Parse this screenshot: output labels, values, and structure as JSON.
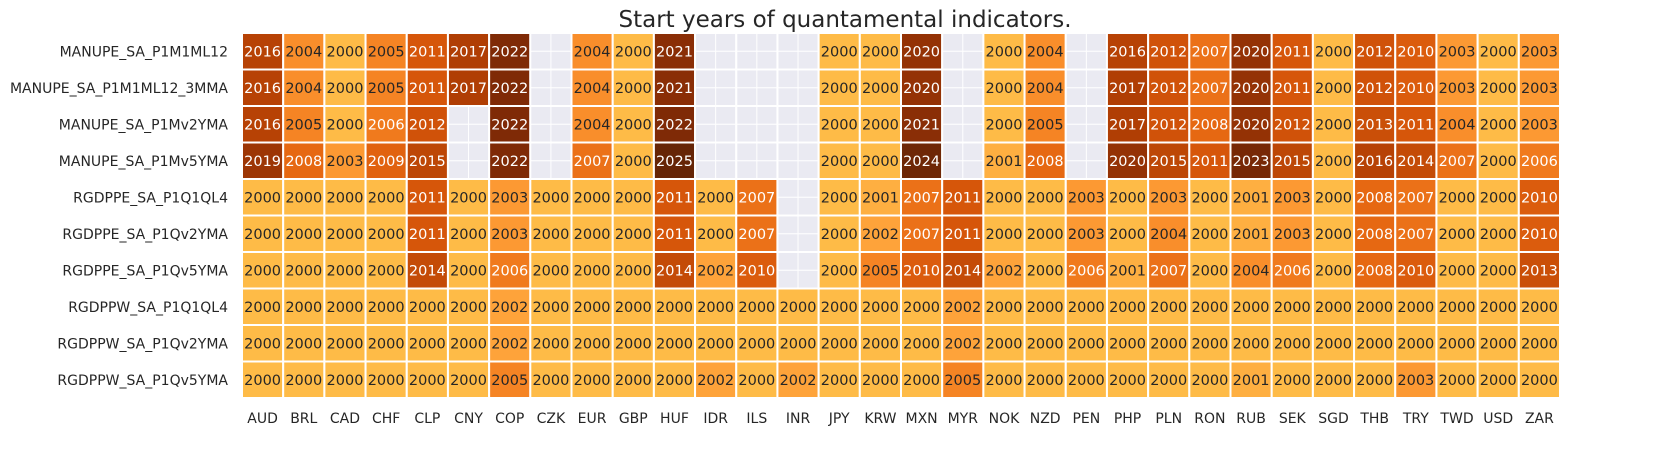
{
  "chart_data": {
    "type": "heatmap",
    "title": "Start years of quantamental indicators.",
    "rows": [
      "MANUPE_SA_P1M1ML12",
      "MANUPE_SA_P1M1ML12_3MMA",
      "MANUPE_SA_P1Mv2YMA",
      "MANUPE_SA_P1Mv5YMA",
      "RGDPPE_SA_P1Q1QL4",
      "RGDPPE_SA_P1Qv2YMA",
      "RGDPPE_SA_P1Qv5YMA",
      "RGDPPW_SA_P1Q1QL4",
      "RGDPPW_SA_P1Qv2YMA",
      "RGDPPW_SA_P1Qv5YMA"
    ],
    "columns": [
      "AUD",
      "BRL",
      "CAD",
      "CHF",
      "CLP",
      "CNY",
      "COP",
      "CZK",
      "EUR",
      "GBP",
      "HUF",
      "IDR",
      "ILS",
      "INR",
      "JPY",
      "KRW",
      "MXN",
      "MYR",
      "NOK",
      "NZD",
      "PEN",
      "PHP",
      "PLN",
      "RON",
      "RUB",
      "SEK",
      "SGD",
      "THB",
      "TRY",
      "TWD",
      "USD",
      "ZAR"
    ],
    "values": [
      [
        2016,
        2004,
        2000,
        2005,
        2011,
        2017,
        2022,
        null,
        2004,
        2000,
        2021,
        null,
        null,
        null,
        2000,
        2000,
        2020,
        null,
        2000,
        2004,
        null,
        2016,
        2012,
        2007,
        2020,
        2011,
        2000,
        2012,
        2010,
        2003,
        2000,
        2003
      ],
      [
        2016,
        2004,
        2000,
        2005,
        2011,
        2017,
        2022,
        null,
        2004,
        2000,
        2021,
        null,
        null,
        null,
        2000,
        2000,
        2020,
        null,
        2000,
        2004,
        null,
        2017,
        2012,
        2007,
        2020,
        2011,
        2000,
        2012,
        2010,
        2003,
        2000,
        2003
      ],
      [
        2016,
        2005,
        2000,
        2006,
        2012,
        null,
        2022,
        null,
        2004,
        2000,
        2022,
        null,
        null,
        null,
        2000,
        2000,
        2021,
        null,
        2000,
        2005,
        null,
        2017,
        2012,
        2008,
        2020,
        2012,
        2000,
        2013,
        2011,
        2004,
        2000,
        2003
      ],
      [
        2019,
        2008,
        2003,
        2009,
        2015,
        null,
        2022,
        null,
        2007,
        2000,
        2025,
        null,
        null,
        null,
        2000,
        2000,
        2024,
        null,
        2001,
        2008,
        null,
        2020,
        2015,
        2011,
        2023,
        2015,
        2000,
        2016,
        2014,
        2007,
        2000,
        2006
      ],
      [
        2000,
        2000,
        2000,
        2000,
        2011,
        2000,
        2003,
        2000,
        2000,
        2000,
        2011,
        2000,
        2007,
        null,
        2000,
        2001,
        2007,
        2011,
        2000,
        2000,
        2003,
        2000,
        2003,
        2000,
        2001,
        2003,
        2000,
        2008,
        2007,
        2000,
        2000,
        2010
      ],
      [
        2000,
        2000,
        2000,
        2000,
        2011,
        2000,
        2003,
        2000,
        2000,
        2000,
        2011,
        2000,
        2007,
        null,
        2000,
        2002,
        2007,
        2011,
        2000,
        2000,
        2003,
        2000,
        2004,
        2000,
        2001,
        2003,
        2000,
        2008,
        2007,
        2000,
        2000,
        2010
      ],
      [
        2000,
        2000,
        2000,
        2000,
        2014,
        2000,
        2006,
        2000,
        2000,
        2000,
        2014,
        2002,
        2010,
        null,
        2000,
        2005,
        2010,
        2014,
        2002,
        2000,
        2006,
        2001,
        2007,
        2000,
        2004,
        2006,
        2000,
        2008,
        2010,
        2000,
        2000,
        2013
      ],
      [
        2000,
        2000,
        2000,
        2000,
        2000,
        2000,
        2002,
        2000,
        2000,
        2000,
        2000,
        2000,
        2000,
        2000,
        2000,
        2000,
        2000,
        2002,
        2000,
        2000,
        2000,
        2000,
        2000,
        2000,
        2000,
        2000,
        2000,
        2000,
        2000,
        2000,
        2000,
        2000
      ],
      [
        2000,
        2000,
        2000,
        2000,
        2000,
        2000,
        2002,
        2000,
        2000,
        2000,
        2000,
        2000,
        2000,
        2000,
        2000,
        2000,
        2000,
        2002,
        2000,
        2000,
        2000,
        2000,
        2000,
        2000,
        2000,
        2000,
        2000,
        2000,
        2000,
        2000,
        2000,
        2000
      ],
      [
        2000,
        2000,
        2000,
        2000,
        2000,
        2000,
        2005,
        2000,
        2000,
        2000,
        2000,
        2002,
        2000,
        2002,
        2000,
        2000,
        2000,
        2005,
        2000,
        2000,
        2000,
        2000,
        2000,
        2000,
        2001,
        2000,
        2000,
        2000,
        2003,
        2000,
        2000,
        2000
      ]
    ],
    "color_scale": {
      "name": "YlOrBr",
      "stops": [
        {
          "v": 2000,
          "color": "#febb47"
        },
        {
          "v": 2002,
          "color": "#fea33a"
        },
        {
          "v": 2004,
          "color": "#f98e2b"
        },
        {
          "v": 2006,
          "color": "#f07a1d"
        },
        {
          "v": 2008,
          "color": "#e66812"
        },
        {
          "v": 2011,
          "color": "#d6560a"
        },
        {
          "v": 2014,
          "color": "#c44b07"
        },
        {
          "v": 2017,
          "color": "#b03e04"
        },
        {
          "v": 2020,
          "color": "#943205"
        },
        {
          "v": 2022,
          "color": "#7f2a06"
        },
        {
          "v": 2025,
          "color": "#662506"
        }
      ],
      "missing_color": "#eaeaf2",
      "white_text_from": 2006
    },
    "grid": true,
    "legend": "none"
  }
}
